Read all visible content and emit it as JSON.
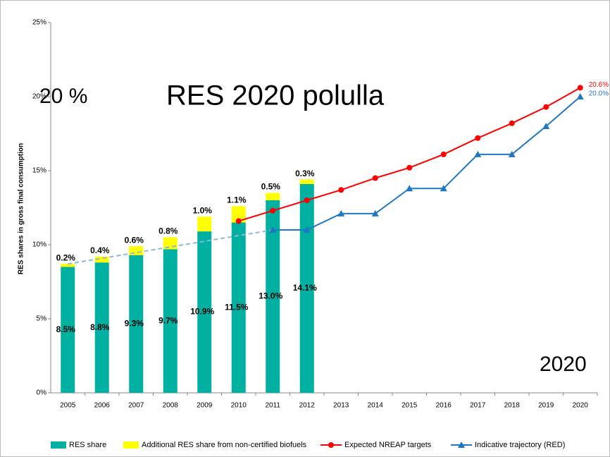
{
  "chart_data": {
    "type": "bar",
    "y_axis_label": "RES shares in gross final consumption",
    "categories": [
      "2005",
      "2006",
      "2007",
      "2008",
      "2009",
      "2010",
      "2011",
      "2012",
      "2013",
      "2014",
      "2015",
      "2016",
      "2017",
      "2018",
      "2019",
      "2020"
    ],
    "series": [
      {
        "name": "RES share",
        "color": "#00b0a0",
        "kind": "bar",
        "values": [
          8.5,
          8.8,
          9.3,
          9.7,
          10.9,
          11.5,
          13.0,
          14.1,
          null,
          null,
          null,
          null,
          null,
          null,
          null,
          null
        ],
        "value_labels": [
          "8.5%",
          "8.8%",
          "9.3%",
          "9.7%",
          "10.9%",
          "11.5%",
          "13.0%",
          "14.1%",
          null,
          null,
          null,
          null,
          null,
          null,
          null,
          null
        ]
      },
      {
        "name": "Additional RES share from non-certified biofuels",
        "color": "#ffff00",
        "kind": "bar",
        "values": [
          0.2,
          0.4,
          0.6,
          0.8,
          1.0,
          1.1,
          0.5,
          0.3,
          null,
          null,
          null,
          null,
          null,
          null,
          null,
          null
        ],
        "value_labels": [
          "0.2%",
          "0.4%",
          "0.6%",
          "0.8%",
          "1.0%",
          "1.1%",
          "0.5%",
          "0.3%",
          null,
          null,
          null,
          null,
          null,
          null,
          null,
          null
        ]
      },
      {
        "name": "Expected NREAP targets",
        "color": "#ff0000",
        "kind": "line",
        "marker": "circle",
        "values": [
          null,
          null,
          null,
          null,
          null,
          11.6,
          12.3,
          13.0,
          13.7,
          14.5,
          15.2,
          16.1,
          17.2,
          18.2,
          19.3,
          20.6
        ],
        "value_labels": [
          null,
          null,
          null,
          null,
          null,
          null,
          null,
          null,
          null,
          null,
          null,
          null,
          null,
          null,
          null,
          "20.6%"
        ]
      },
      {
        "name": "Indicative trajectory (RED)",
        "color": "#1f77c4",
        "kind": "line",
        "marker": "triangle",
        "values": [
          null,
          null,
          null,
          null,
          null,
          null,
          11.0,
          11.0,
          12.1,
          12.1,
          13.8,
          13.8,
          16.1,
          16.1,
          18.0,
          20.0
        ],
        "value_labels": [
          null,
          null,
          null,
          null,
          null,
          null,
          null,
          null,
          null,
          null,
          null,
          null,
          null,
          null,
          null,
          "20.0%"
        ]
      }
    ],
    "trend_line": {
      "color": "#8fb8dc",
      "values": [
        8.7,
        null,
        null,
        null,
        null,
        null,
        11.0,
        null,
        null,
        null,
        null,
        null,
        null,
        null,
        null,
        null
      ]
    },
    "annotations": [
      "20 %",
      "RES 2020 polulla",
      "2020"
    ],
    "ylim": [
      0,
      25
    ],
    "yticks": [
      {
        "value": 0,
        "label": "0%"
      },
      {
        "value": 5,
        "label": "5%"
      },
      {
        "value": 10,
        "label": "10%"
      },
      {
        "value": 15,
        "label": "15%"
      },
      {
        "value": 20,
        "label": "20%"
      },
      {
        "value": 25,
        "label": "25%"
      }
    ],
    "legend": "bottom"
  }
}
